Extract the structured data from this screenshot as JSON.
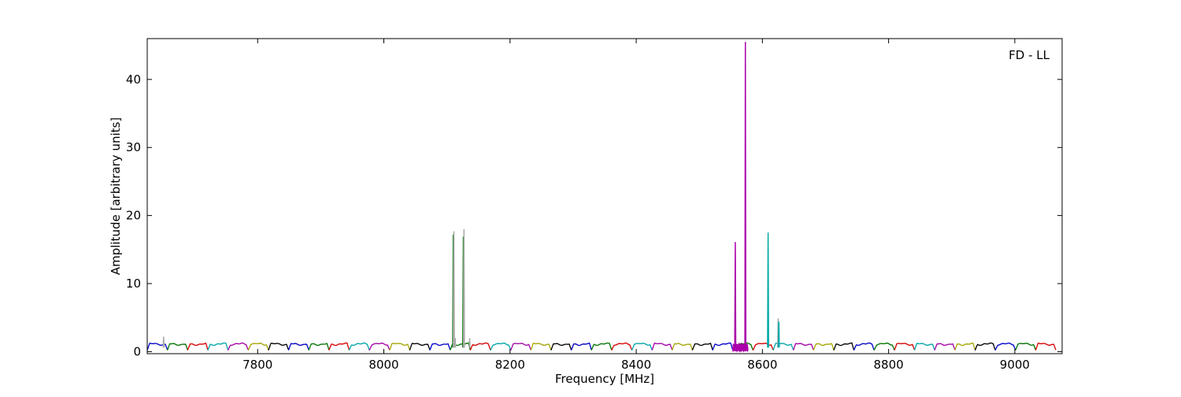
{
  "chart_data": {
    "type": "line",
    "xlabel": "Frequency [MHz]",
    "ylabel": "Amplitude [arbitrary units]",
    "annotation": "FD - LL",
    "xlim": [
      7625,
      9075
    ],
    "ylim": [
      -0.3,
      46
    ],
    "xticks": [
      7800,
      8000,
      8200,
      8400,
      8600,
      8800,
      9000
    ],
    "yticks": [
      0,
      10,
      20,
      30,
      40
    ],
    "xtick_labels": [
      "7800",
      "8000",
      "8200",
      "8400",
      "8600",
      "8800",
      "9000"
    ],
    "ytick_labels": [
      "0",
      "10",
      "20",
      "30",
      "40"
    ],
    "grid": false,
    "channel_width_mhz": 32,
    "palette": [
      "#0000cc",
      "#007700",
      "#dd0000",
      "#00aaaa",
      "#aa00aa",
      "#aaaa00",
      "#000000"
    ],
    "background_color": "#aaaaaa",
    "series_start_mhz": 7625,
    "series_count": 45,
    "spikes": [
      {
        "x": 7651,
        "y": 2.2,
        "color": "#aaaaaa"
      },
      {
        "x": 8110,
        "y": 17.2,
        "color": "#007700"
      },
      {
        "x": 8111,
        "y": 17.7,
        "color": "#aaaaaa"
      },
      {
        "x": 8113,
        "y": 2.0,
        "color": "#aaaaaa"
      },
      {
        "x": 8126,
        "y": 16.9,
        "color": "#007700"
      },
      {
        "x": 8127,
        "y": 18.0,
        "color": "#aaaaaa"
      },
      {
        "x": 8136,
        "y": 2.0,
        "color": "#aaaaaa"
      },
      {
        "x": 8557,
        "y": 16.1,
        "color": "#aa00aa"
      },
      {
        "x": 8573,
        "y": 45.5,
        "color": "#aa00aa"
      },
      {
        "x": 8609,
        "y": 17.5,
        "color": "#00aaaa"
      },
      {
        "x": 8625,
        "y": 4.9,
        "color": "#aaaaaa"
      },
      {
        "x": 8626,
        "y": 4.4,
        "color": "#00aaaa"
      }
    ]
  }
}
